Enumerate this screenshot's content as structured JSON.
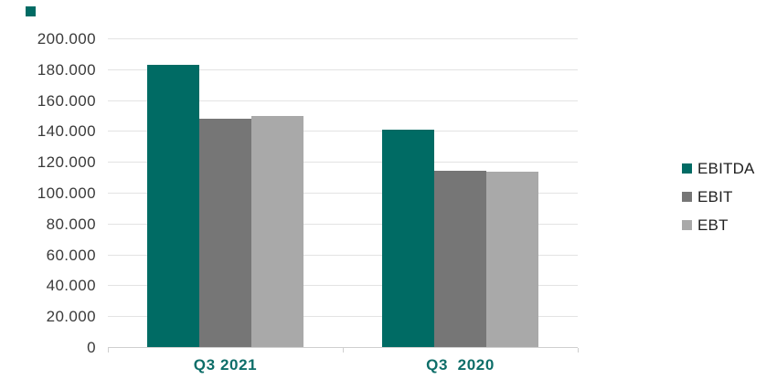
{
  "chart_data": {
    "type": "bar",
    "title": "",
    "xlabel": "",
    "ylabel": "",
    "categories": [
      "Q3 2021",
      "Q3  2020"
    ],
    "series": [
      {
        "name": "EBITDA",
        "color": "#006B64",
        "values": [
          183000,
          141000
        ]
      },
      {
        "name": "EBIT",
        "color": "#767676",
        "values": [
          148000,
          114000
        ]
      },
      {
        "name": "EBT",
        "color": "#A9A9A9",
        "values": [
          150000,
          113500
        ]
      }
    ],
    "ylim": [
      0,
      200000
    ],
    "ytick_step": 20000,
    "ytick_labels": [
      "0",
      "20.000",
      "40.000",
      "60.000",
      "80.000",
      "100.000",
      "120.000",
      "140.000",
      "160.000",
      "180.000",
      "200.000"
    ],
    "grid": true,
    "legend_position": "right"
  },
  "legend": {
    "items": [
      {
        "label": "EBITDA",
        "color": "#006B64"
      },
      {
        "label": "EBIT",
        "color": "#767676"
      },
      {
        "label": "EBT",
        "color": "#A9A9A9"
      }
    ]
  },
  "colors": {
    "accent_teal": "#006B64",
    "x_label_teal": "#0E6E69",
    "axis_text": "#3A3A3A",
    "legend_text": "#1F1F1F",
    "gridline": "#E3E3E3",
    "axis_line": "#CFCFCF",
    "background": "#FFFFFF"
  }
}
